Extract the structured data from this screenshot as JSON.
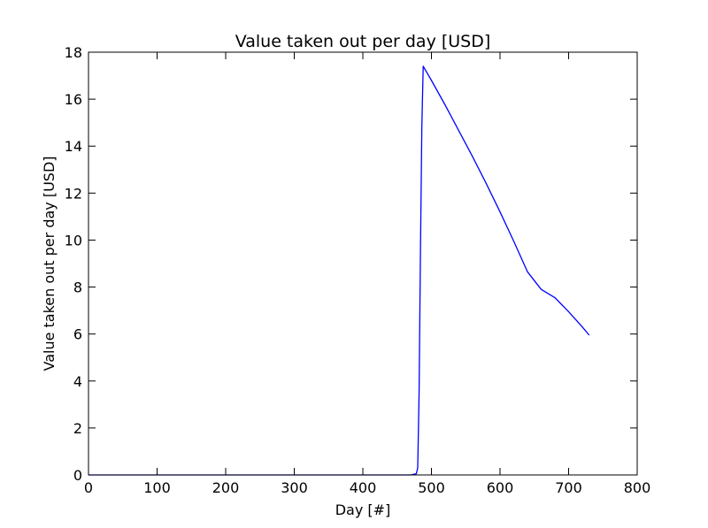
{
  "chart_data": {
    "type": "line",
    "title": "Value taken out per day [USD]",
    "xlabel": "Day [#]",
    "ylabel": "Value taken out per day [USD]",
    "xlim": [
      0,
      800
    ],
    "ylim": [
      0,
      18
    ],
    "xticks": [
      0,
      100,
      200,
      300,
      400,
      500,
      600,
      700,
      800
    ],
    "yticks": [
      0,
      2,
      4,
      6,
      8,
      10,
      12,
      14,
      16,
      18
    ],
    "grid": false,
    "series": [
      {
        "color": "#0000ff",
        "x": [
          0,
          100,
          200,
          300,
          400,
          470,
          478,
          480,
          482,
          484,
          486,
          488,
          490,
          500,
          520,
          540,
          560,
          580,
          600,
          620,
          640,
          660,
          680,
          700,
          720,
          730
        ],
        "y": [
          0,
          0,
          0,
          0,
          0,
          0,
          0.05,
          0.3,
          3.5,
          9.5,
          14.8,
          17.4,
          17.3,
          16.8,
          15.75,
          14.65,
          13.55,
          12.4,
          11.2,
          9.95,
          8.65,
          7.9,
          7.55,
          6.95,
          6.3,
          5.95
        ]
      }
    ]
  }
}
